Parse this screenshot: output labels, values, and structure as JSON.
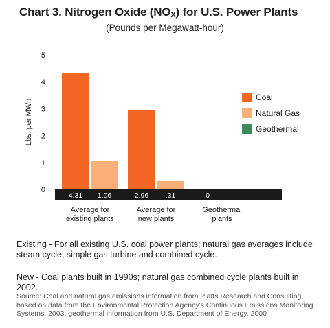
{
  "heading": {
    "title_prefix": "Chart 3.  Nitrogen Oxide (NO",
    "title_sub": "X",
    "title_suffix": ") for U.S. Power Plants",
    "subtitle": "(Pounds per Megawatt-hour)"
  },
  "chart_data": {
    "type": "bar",
    "ylabel": "Lbs. per MWh",
    "ylim": [
      0,
      5
    ],
    "yticks": [
      0,
      1,
      2,
      3,
      4,
      5
    ],
    "categories": [
      [
        "Average for",
        "existing plants"
      ],
      [
        "Average for",
        "new plants"
      ],
      [
        "Geothermal",
        "plants"
      ]
    ],
    "series": [
      {
        "name": "Coal",
        "color": "#f26522",
        "values": [
          4.31,
          2.96,
          0
        ],
        "labels": [
          "4.31",
          "2.96",
          "0"
        ]
      },
      {
        "name": "Natural Gas",
        "color": "#fbb07a",
        "values": [
          1.06,
          0.31,
          0
        ],
        "labels": [
          "1.06",
          ".31",
          ""
        ]
      },
      {
        "name": "Geothermal",
        "color": "#3a8a5e",
        "values": [
          0,
          0,
          0
        ],
        "labels": [
          "",
          "",
          ""
        ]
      }
    ],
    "legend_position": "right",
    "grid": false
  },
  "notes": {
    "existing": "Existing - For all existing U.S. coal power plants; natural gas averages include steam cycle, simple gas turbine and combined cycle.",
    "new": "New - Coal plants built in 1990s; natural gas combined cycle plants built in 2002.",
    "source": "Source: Coal and natural gas emissions information from Platts Research and Consulting, based on data from the Environmental Protection Agency's Continuous Emissions Monitoring Systems, 2003; geothermal information from U.S. Department of Energy, 2000"
  }
}
